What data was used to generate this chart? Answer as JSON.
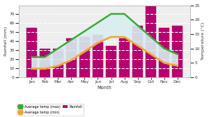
{
  "months": [
    "Jan",
    "Feb",
    "Mar",
    "Apr",
    "May",
    "Jun",
    "Jul",
    "Aug",
    "Sep",
    "Oct",
    "Nov",
    "Dec"
  ],
  "rainfall_mm": [
    55,
    32,
    32,
    43,
    45,
    47,
    35,
    43,
    57,
    82,
    55,
    57
  ],
  "temp_max": [
    7,
    7,
    10,
    13,
    16,
    19,
    22,
    22,
    18,
    14,
    10,
    8
  ],
  "temp_min": [
    3,
    3,
    4,
    6,
    9,
    12,
    14,
    14,
    11,
    8,
    5,
    4
  ],
  "bar_color": "#b5006e",
  "line_max_color": "#3aaa35",
  "line_min_color": "#f5a623",
  "fill_color": "#d8eef0",
  "bg_color": "#eeeeee",
  "grid_color": "#ffffff",
  "ylabel_left": "Rainfall (mm)",
  "ylabel_right": "Temperature (°C)",
  "xlabel": "Month",
  "ylim_left": [
    0,
    80
  ],
  "ylim_right": [
    0,
    25
  ],
  "yticks_left": [
    0,
    10,
    20,
    30,
    40,
    50,
    60,
    70
  ],
  "yticks_right": [
    0,
    5,
    10,
    15,
    20,
    25
  ],
  "legend_labels": [
    "Average temp (max)",
    "Average temp (min)",
    "Rainfall"
  ]
}
